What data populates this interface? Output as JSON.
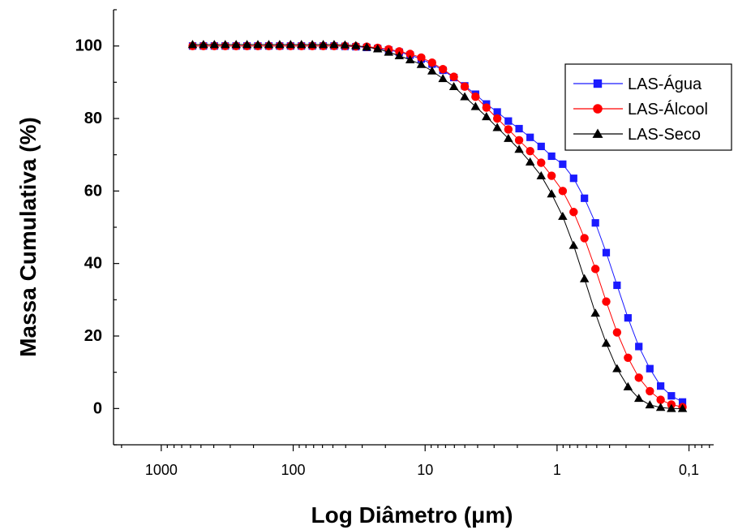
{
  "chart_data": {
    "type": "scatter",
    "xlabel": "Log Diâmetro (μm)",
    "ylabel": "Massa Cumulativa (%)",
    "x_scale": "log",
    "x_reversed": true,
    "xlim": [
      2300,
      0.065
    ],
    "ylim": [
      -10,
      110
    ],
    "x_ticks": [
      {
        "value": 1000,
        "label": "1000"
      },
      {
        "value": 100,
        "label": "100"
      },
      {
        "value": 10,
        "label": "10"
      },
      {
        "value": 1,
        "label": "1"
      },
      {
        "value": 0.1,
        "label": "0,1"
      }
    ],
    "y_ticks": [
      {
        "value": 0,
        "label": "0"
      },
      {
        "value": 20,
        "label": "20"
      },
      {
        "value": 40,
        "label": "40"
      },
      {
        "value": 60,
        "label": "60"
      },
      {
        "value": 80,
        "label": "80"
      },
      {
        "value": 100,
        "label": "100"
      }
    ],
    "grid": false,
    "legend_position": "top-right",
    "x": [
      578.8,
      478.7,
      395.8,
      327.4,
      270.7,
      223.9,
      185.2,
      153.1,
      126.6,
      104.7,
      86.6,
      71.6,
      59.2,
      49.0,
      40.5,
      33.5,
      27.7,
      22.9,
      18.9,
      15.7,
      13.0,
      10.7,
      8.86,
      7.33,
      6.06,
      5.01,
      4.15,
      3.43,
      2.84,
      2.34,
      1.94,
      1.6,
      1.32,
      1.1,
      0.906,
      0.749,
      0.62,
      0.512,
      0.424,
      0.351,
      0.29,
      0.24,
      0.198,
      0.164,
      0.136,
      0.112
    ],
    "series": [
      {
        "name": "LAS-Água",
        "color": "#1a1aff",
        "marker": "square",
        "values": [
          100,
          100,
          100,
          100,
          100,
          100,
          100,
          100,
          100,
          100,
          100,
          100,
          100,
          100,
          99.9,
          99.8,
          99.6,
          99.3,
          98.9,
          98.3,
          97.5,
          96.4,
          95.0,
          93.3,
          91.3,
          89.0,
          86.7,
          84.0,
          81.8,
          79.3,
          77.2,
          74.8,
          72.3,
          69.6,
          67.4,
          63.5,
          58.0,
          51.2,
          43.0,
          34.0,
          25.0,
          17.1,
          11.0,
          6.2,
          3.5,
          1.8
        ]
      },
      {
        "name": "LAS-Álcool",
        "color": "#ff0000",
        "marker": "circle",
        "values": [
          100,
          100,
          100,
          100,
          100,
          100,
          100,
          100,
          100,
          100,
          100,
          100,
          100,
          100,
          100,
          99.9,
          99.8,
          99.5,
          99.1,
          98.5,
          97.8,
          96.8,
          95.4,
          93.6,
          91.5,
          88.8,
          86.0,
          83.0,
          80.0,
          77.0,
          74.0,
          71.0,
          67.8,
          64.2,
          60.0,
          54.2,
          47.0,
          38.5,
          29.5,
          21.0,
          14.0,
          8.5,
          4.8,
          2.4,
          1.1,
          0.4
        ]
      },
      {
        "name": "LAS-Seco",
        "color": "#000000",
        "marker": "triangle",
        "values": [
          100.4,
          100.4,
          100.4,
          100.4,
          100.4,
          100.4,
          100.4,
          100.4,
          100.4,
          100.4,
          100.4,
          100.4,
          100.4,
          100.4,
          100.3,
          100.1,
          99.7,
          99.2,
          98.3,
          97.3,
          96.2,
          94.9,
          93.1,
          91.0,
          88.8,
          86.0,
          83.3,
          80.5,
          77.5,
          74.5,
          71.5,
          68.0,
          64.2,
          59.2,
          53.0,
          45.0,
          35.8,
          26.3,
          18.0,
          11.0,
          6.0,
          2.8,
          1.0,
          0.3,
          0.0,
          0.0
        ]
      }
    ]
  }
}
